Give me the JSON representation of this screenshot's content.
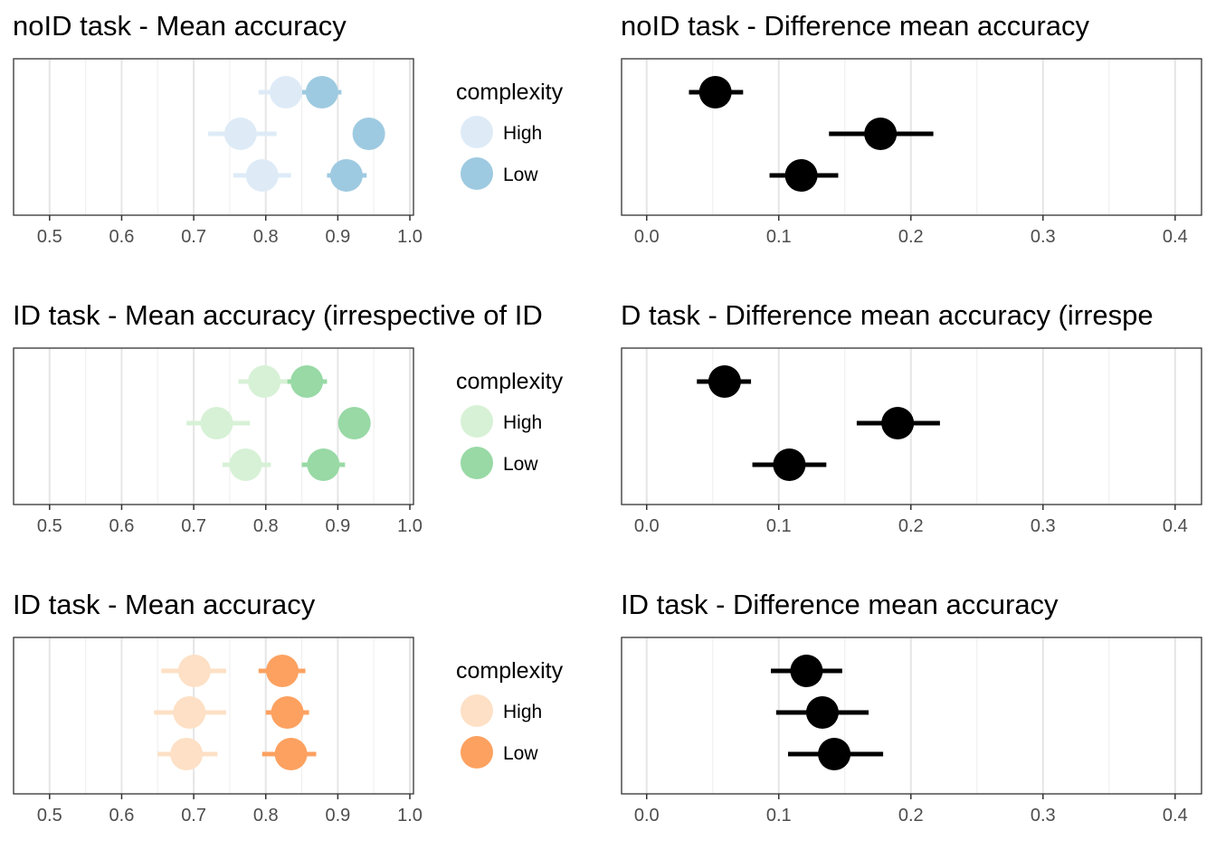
{
  "chart_data": [
    {
      "type": "scatter",
      "title": "noID task - Mean accuracy",
      "xlabel": "",
      "ylabel": "",
      "xlim": [
        0.45,
        1.005
      ],
      "xticks": [
        0.5,
        0.6,
        0.7,
        0.8,
        0.9,
        1.0
      ],
      "xtick_labels": [
        "0.5",
        "0.6",
        "0.7",
        "0.8",
        "0.9",
        "1.0"
      ],
      "grid": true,
      "legend": {
        "title": "complexity",
        "placement": "right"
      },
      "series": [
        {
          "name": "High",
          "color": "#deebf7",
          "points": [
            {
              "row": 1,
              "x": 0.828,
              "lo": 0.79,
              "hi": 0.86
            },
            {
              "row": 2,
              "x": 0.765,
              "lo": 0.72,
              "hi": 0.815
            },
            {
              "row": 3,
              "x": 0.795,
              "lo": 0.755,
              "hi": 0.835
            }
          ]
        },
        {
          "name": "Low",
          "color": "#9ecae1",
          "points": [
            {
              "row": 1,
              "x": 0.878,
              "lo": 0.85,
              "hi": 0.905
            },
            {
              "row": 2,
              "x": 0.943,
              "lo": 0.935,
              "hi": 0.95
            },
            {
              "row": 3,
              "x": 0.912,
              "lo": 0.885,
              "hi": 0.94
            }
          ]
        }
      ]
    },
    {
      "type": "scatter",
      "title": "noID task - Difference mean accuracy",
      "xlabel": "",
      "ylabel": "",
      "xlim": [
        -0.019,
        0.42
      ],
      "xticks": [
        0.0,
        0.1,
        0.2,
        0.3,
        0.4
      ],
      "xtick_labels": [
        "0.0",
        "0.1",
        "0.2",
        "0.3",
        "0.4"
      ],
      "grid": true,
      "series": [
        {
          "color": "#000000",
          "points": [
            {
              "row": 1,
              "x": 0.052,
              "lo": 0.032,
              "hi": 0.073
            },
            {
              "row": 2,
              "x": 0.177,
              "lo": 0.138,
              "hi": 0.217
            },
            {
              "row": 3,
              "x": 0.117,
              "lo": 0.093,
              "hi": 0.145
            }
          ]
        }
      ]
    },
    {
      "type": "scatter",
      "title": "ID task - Mean accuracy (irrespective of ID",
      "xlabel": "",
      "ylabel": "",
      "xlim": [
        0.45,
        1.005
      ],
      "xticks": [
        0.5,
        0.6,
        0.7,
        0.8,
        0.9,
        1.0
      ],
      "xtick_labels": [
        "0.5",
        "0.6",
        "0.7",
        "0.8",
        "0.9",
        "1.0"
      ],
      "grid": true,
      "legend": {
        "title": "complexity",
        "placement": "right"
      },
      "series": [
        {
          "name": "High",
          "color": "#d7f1d6",
          "points": [
            {
              "row": 1,
              "x": 0.798,
              "lo": 0.762,
              "hi": 0.832
            },
            {
              "row": 2,
              "x": 0.732,
              "lo": 0.69,
              "hi": 0.778
            },
            {
              "row": 3,
              "x": 0.772,
              "lo": 0.74,
              "hi": 0.807
            }
          ]
        },
        {
          "name": "Low",
          "color": "#98d9a5",
          "points": [
            {
              "row": 1,
              "x": 0.857,
              "lo": 0.83,
              "hi": 0.885
            },
            {
              "row": 2,
              "x": 0.923,
              "lo": 0.92,
              "hi": 0.927
            },
            {
              "row": 3,
              "x": 0.88,
              "lo": 0.85,
              "hi": 0.91
            }
          ]
        }
      ]
    },
    {
      "type": "scatter",
      "title": "D task - Difference mean accuracy (irrespe",
      "xlabel": "",
      "ylabel": "",
      "xlim": [
        -0.019,
        0.42
      ],
      "xticks": [
        0.0,
        0.1,
        0.2,
        0.3,
        0.4
      ],
      "xtick_labels": [
        "0.0",
        "0.1",
        "0.2",
        "0.3",
        "0.4"
      ],
      "grid": true,
      "series": [
        {
          "color": "#000000",
          "points": [
            {
              "row": 1,
              "x": 0.059,
              "lo": 0.038,
              "hi": 0.079
            },
            {
              "row": 2,
              "x": 0.19,
              "lo": 0.159,
              "hi": 0.222
            },
            {
              "row": 3,
              "x": 0.108,
              "lo": 0.08,
              "hi": 0.136
            }
          ]
        }
      ]
    },
    {
      "type": "scatter",
      "title": "ID task - Mean accuracy",
      "xlabel": "",
      "ylabel": "",
      "xlim": [
        0.45,
        1.005
      ],
      "xticks": [
        0.5,
        0.6,
        0.7,
        0.8,
        0.9,
        1.0
      ],
      "xtick_labels": [
        "0.5",
        "0.6",
        "0.7",
        "0.8",
        "0.9",
        "1.0"
      ],
      "grid": true,
      "legend": {
        "title": "complexity",
        "placement": "right"
      },
      "series": [
        {
          "name": "High",
          "color": "#fde0c5",
          "points": [
            {
              "row": 1,
              "x": 0.701,
              "lo": 0.655,
              "hi": 0.745
            },
            {
              "row": 2,
              "x": 0.694,
              "lo": 0.645,
              "hi": 0.745
            },
            {
              "row": 3,
              "x": 0.69,
              "lo": 0.65,
              "hi": 0.733
            }
          ]
        },
        {
          "name": "Low",
          "color": "#fda160",
          "points": [
            {
              "row": 1,
              "x": 0.823,
              "lo": 0.79,
              "hi": 0.855
            },
            {
              "row": 2,
              "x": 0.83,
              "lo": 0.8,
              "hi": 0.86
            },
            {
              "row": 3,
              "x": 0.835,
              "lo": 0.795,
              "hi": 0.87
            }
          ]
        }
      ]
    },
    {
      "type": "scatter",
      "title": "ID task - Difference mean accuracy",
      "xlabel": "",
      "ylabel": "",
      "xlim": [
        -0.019,
        0.42
      ],
      "xticks": [
        0.0,
        0.1,
        0.2,
        0.3,
        0.4
      ],
      "xtick_labels": [
        "0.0",
        "0.1",
        "0.2",
        "0.3",
        "0.4"
      ],
      "grid": true,
      "series": [
        {
          "color": "#000000",
          "points": [
            {
              "row": 1,
              "x": 0.121,
              "lo": 0.094,
              "hi": 0.148
            },
            {
              "row": 2,
              "x": 0.133,
              "lo": 0.098,
              "hi": 0.168
            },
            {
              "row": 3,
              "x": 0.142,
              "lo": 0.107,
              "hi": 0.179
            }
          ]
        }
      ]
    }
  ]
}
